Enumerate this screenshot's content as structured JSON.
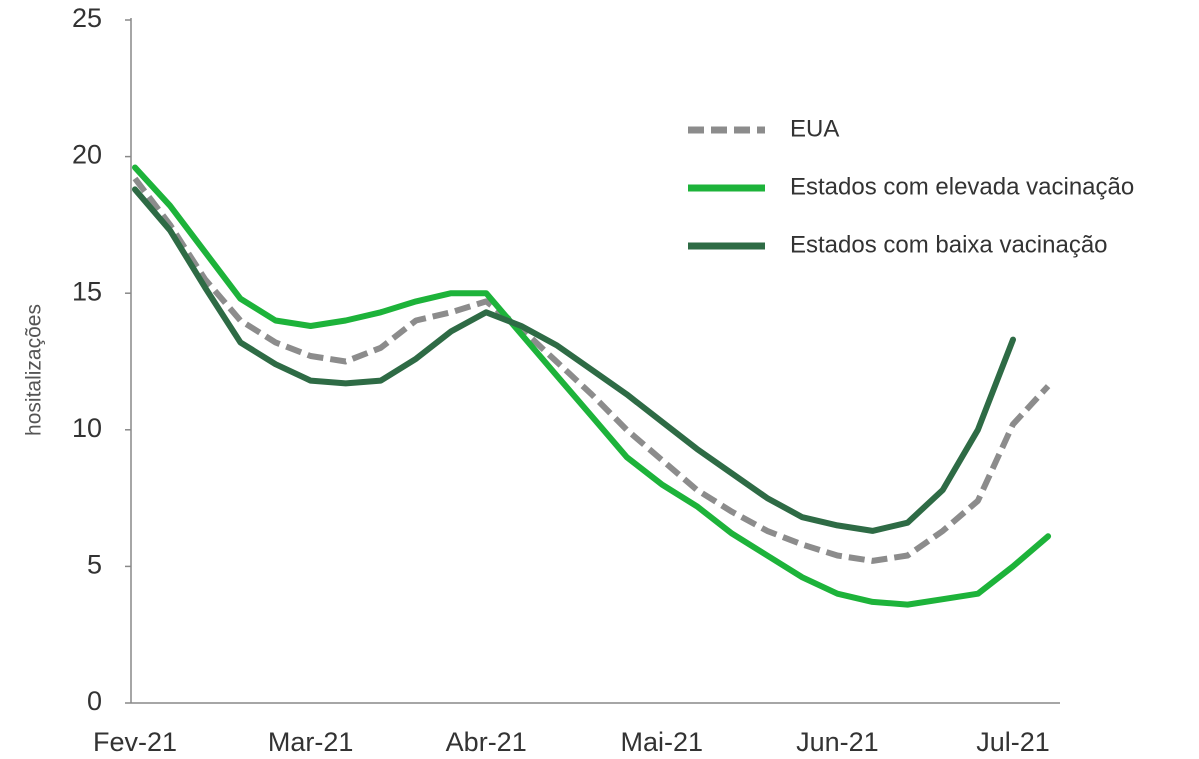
{
  "chart_data": {
    "type": "line",
    "y_label": "hositalizações",
    "categories": [
      "Fev-21",
      null,
      null,
      null,
      null,
      "Mar-21",
      null,
      null,
      null,
      null,
      "Abr-21",
      null,
      null,
      null,
      null,
      "Mai-21",
      null,
      null,
      null,
      null,
      "Jun-21",
      null,
      null,
      null,
      null,
      "Jul-21",
      null
    ],
    "series": [
      {
        "name": "EUA",
        "color": "#8c8c8c",
        "dashed": true,
        "values": [
          19.2,
          17.5,
          15.5,
          14.0,
          13.2,
          12.7,
          12.5,
          13.0,
          14.0,
          14.3,
          14.7,
          13.7,
          12.5,
          11.3,
          10.0,
          8.9,
          7.8,
          7.0,
          6.3,
          5.8,
          5.4,
          5.2,
          5.4,
          6.3,
          7.4,
          10.2,
          11.6
        ]
      },
      {
        "name": "Estados com elevada vacinação",
        "color": "#1db33a",
        "dashed": false,
        "values": [
          19.6,
          18.2,
          16.5,
          14.8,
          14.0,
          13.8,
          14.0,
          14.3,
          14.7,
          15.0,
          15.0,
          13.5,
          12.0,
          10.5,
          9.0,
          8.0,
          7.2,
          6.2,
          5.4,
          4.6,
          4.0,
          3.7,
          3.6,
          3.8,
          4.0,
          5.0,
          6.1
        ]
      },
      {
        "name": "Estados com baixa vacinação",
        "color": "#2e6b45",
        "dashed": false,
        "values": [
          18.8,
          17.3,
          15.2,
          13.2,
          12.4,
          11.8,
          11.7,
          11.8,
          12.6,
          13.6,
          14.3,
          13.8,
          13.1,
          12.2,
          11.3,
          10.3,
          9.3,
          8.4,
          7.5,
          6.8,
          6.5,
          6.3,
          6.6,
          7.8,
          10.0,
          13.3,
          null
        ]
      }
    ],
    "ylim": [
      0,
      25
    ],
    "yticks": [
      0,
      5,
      10,
      15,
      20,
      25
    ],
    "grid": false
  }
}
